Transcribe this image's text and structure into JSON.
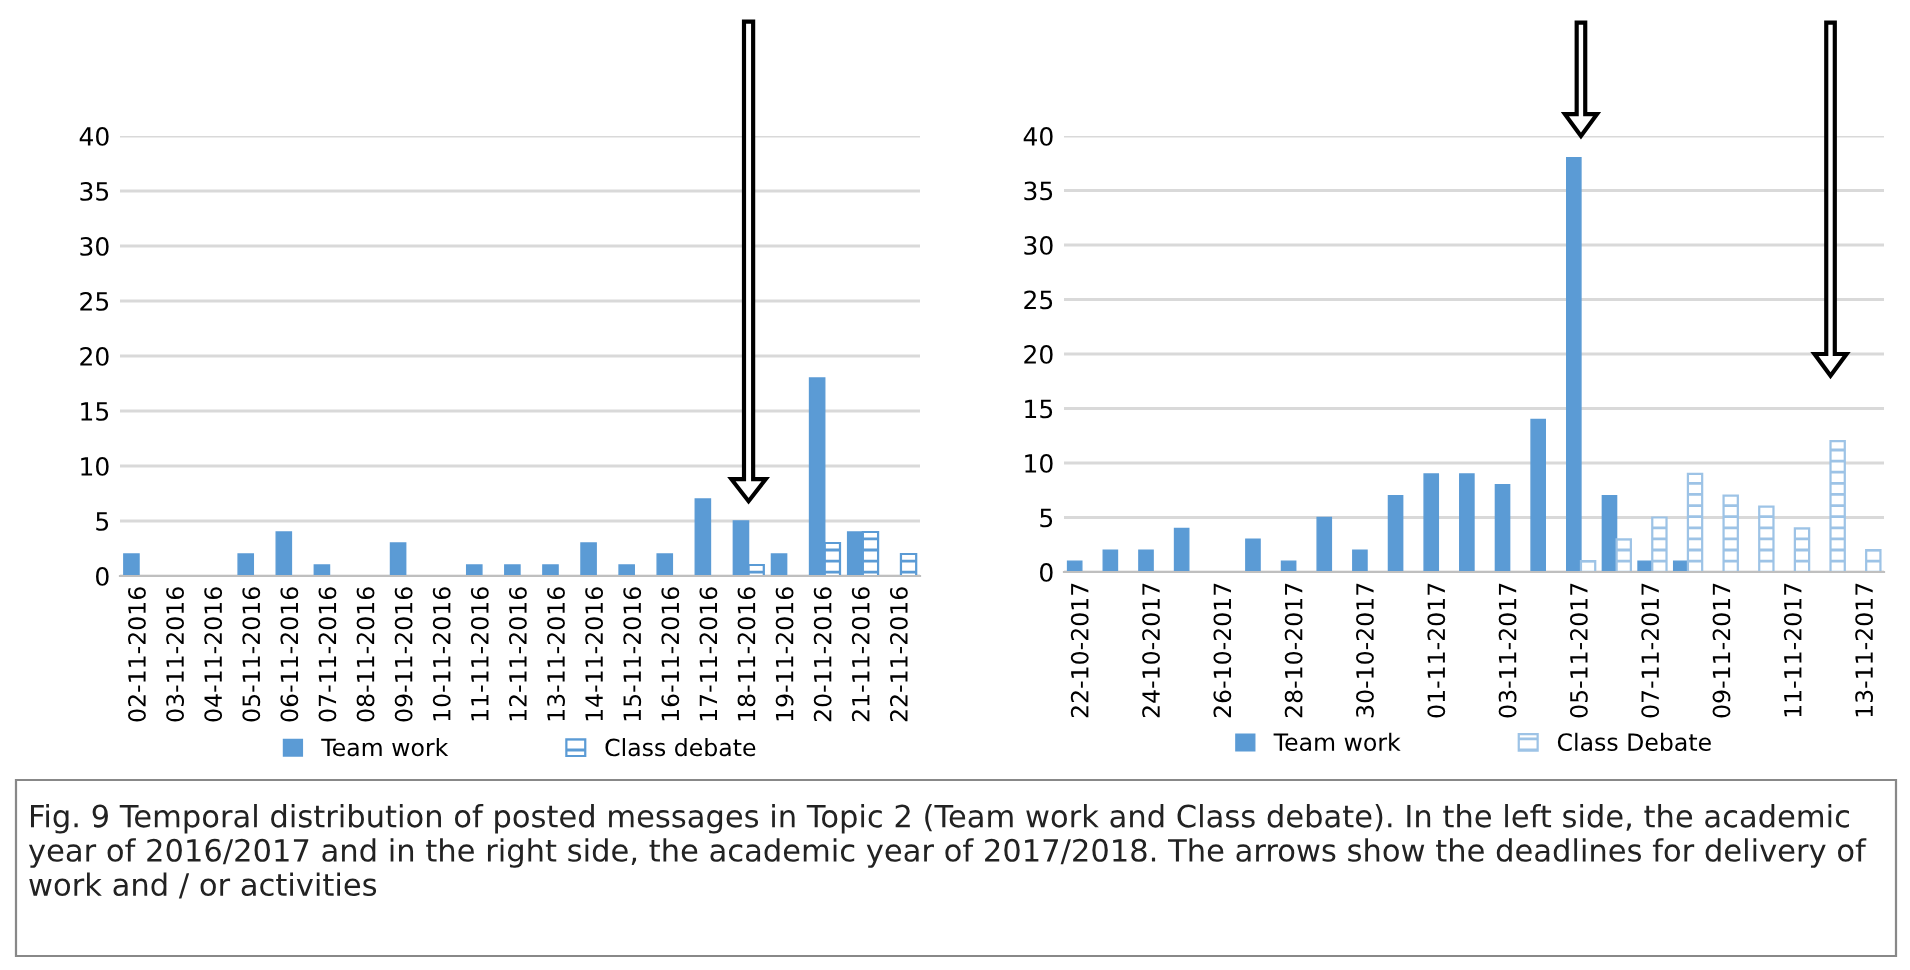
{
  "chart_data": [
    {
      "type": "bar",
      "categories": [
        "02-11-2016",
        "03-11-2016",
        "04-11-2016",
        "05-11-2016",
        "06-11-2016",
        "07-11-2016",
        "08-11-2016",
        "09-11-2016",
        "10-11-2016",
        "11-11-2016",
        "12-11-2016",
        "13-11-2016",
        "14-11-2016",
        "15-11-2016",
        "16-11-2016",
        "17-11-2016",
        "18-11-2016",
        "19-11-2016",
        "20-11-2016",
        "21-11-2016",
        "22-11-2016"
      ],
      "series": [
        {
          "name": "Team work",
          "color": "#5b9bd5",
          "values": [
            2,
            0,
            0,
            2,
            4,
            1,
            0,
            3,
            0,
            1,
            1,
            1,
            3,
            1,
            2,
            7,
            5,
            2,
            18,
            4,
            0
          ]
        },
        {
          "name": "Class debate",
          "color": "#5b9bd5",
          "values": [
            0,
            0,
            0,
            0,
            0,
            0,
            0,
            0,
            0,
            0,
            0,
            0,
            0,
            0,
            0,
            0,
            1,
            0,
            3,
            4,
            2
          ]
        }
      ],
      "ylim": [
        0,
        40
      ],
      "yticks": [
        0,
        5,
        10,
        15,
        20,
        25,
        30,
        35,
        40
      ],
      "grid": "y",
      "legend": "bottom",
      "annotations": [
        "Fig. 9 Temporal distribution of posted messages in Topic 2 (Team work and Class debate). In the left side, the academic year of 2016/2017 and in the right side, the academic year of 2017/2018. The arrows show the deadlines for delivery of work and / or activities"
      ]
    },
    {
      "type": "bar",
      "categories": [
        "22-10-2017",
        null,
        "24-10-2017",
        null,
        "26-10-2017",
        null,
        "28-10-2017",
        null,
        "30-10-2017",
        null,
        "01-11-2017",
        null,
        "03-11-2017",
        null,
        "05-11-2017",
        null,
        "07-11-2017",
        null,
        "09-11-2017",
        null,
        "11-11-2017",
        null,
        "13-11-2017"
      ],
      "series": [
        {
          "name": "Team work",
          "color": "#5b9bd5",
          "values": [
            1,
            2,
            2,
            4,
            0,
            3,
            1,
            5,
            2,
            7,
            9,
            9,
            8,
            14,
            38,
            7,
            1,
            1,
            0,
            0,
            0,
            0,
            0
          ]
        },
        {
          "name": "Class Debate",
          "color": "#9dc3e6",
          "values": [
            0,
            0,
            0,
            0,
            0,
            0,
            0,
            0,
            0,
            0,
            0,
            0,
            0,
            0,
            1,
            3,
            5,
            9,
            7,
            6,
            4,
            12,
            2
          ]
        }
      ],
      "ylim": [
        0,
        40
      ],
      "yticks": [
        0,
        5,
        10,
        15,
        20,
        25,
        30,
        35,
        40
      ],
      "grid": "y",
      "legend": "bottom"
    }
  ]
}
